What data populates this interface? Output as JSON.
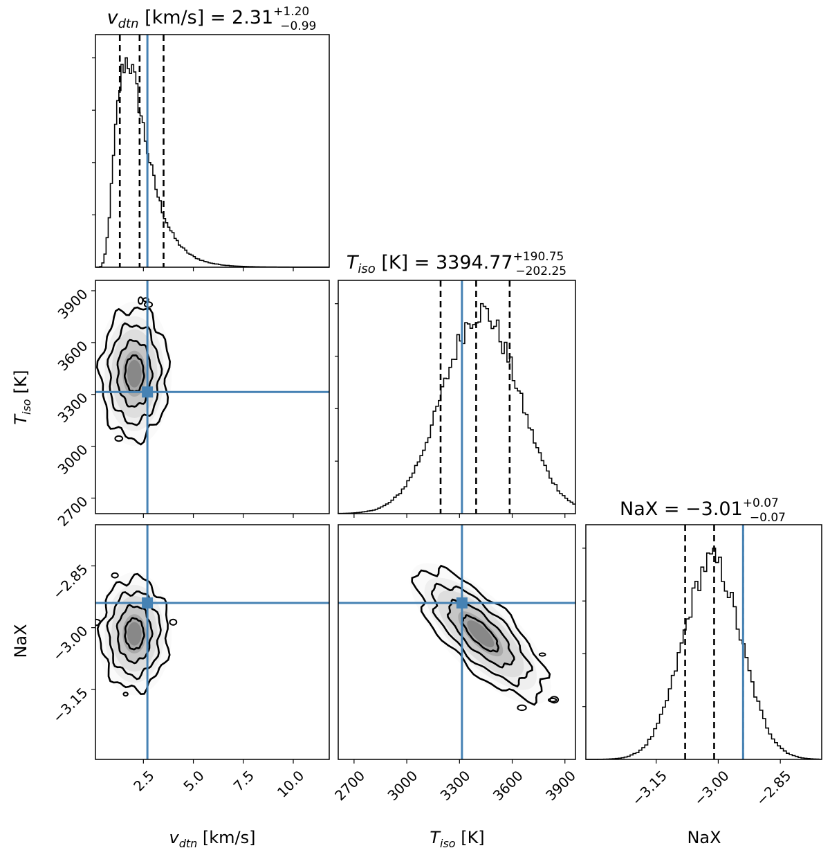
{
  "chart_data": {
    "type": "corner",
    "truth_color": "#4682b4",
    "parameters": [
      {
        "key": "vdtn",
        "label": "v_dtn [km/s]",
        "label_main": "v",
        "label_sub": "dtn",
        "label_unit": " [km/s]",
        "median": 2.31,
        "err_plus": 1.2,
        "err_minus": 0.99,
        "title_eq": " [km/s] = 2.31",
        "title_plus": "+1.20",
        "title_minus": "−0.99",
        "truth": 2.7,
        "quantiles": [
          1.32,
          2.31,
          3.51
        ],
        "range": [
          0.1,
          11.8
        ],
        "ticks": [
          2.5,
          5.0,
          7.5,
          10.0
        ],
        "tick_labels": [
          "2.5",
          "5.0",
          "7.5",
          "10.0"
        ]
      },
      {
        "key": "tiso",
        "label": "T_iso [K]",
        "label_main": "T",
        "label_sub": "iso",
        "label_unit": " [K]",
        "median": 3394.77,
        "err_plus": 190.75,
        "err_minus": 202.25,
        "title_eq": " [K] = 3394.77",
        "title_plus": "+190.75",
        "title_minus": "−202.25",
        "truth": 3314,
        "quantiles": [
          3192.52,
          3394.77,
          3585.52
        ],
        "range": [
          2610,
          3960
        ],
        "ticks": [
          2700,
          3000,
          3300,
          3600,
          3900
        ],
        "tick_labels": [
          "2700",
          "3000",
          "3300",
          "3600",
          "3900"
        ]
      },
      {
        "key": "nax",
        "label": "NaX",
        "label_main": "NaX",
        "label_sub": "",
        "label_unit": "",
        "median": -3.01,
        "err_plus": 0.07,
        "err_minus": 0.07,
        "title_eq": " = −3.01",
        "title_plus": "+0.07",
        "title_minus": "−0.07",
        "truth": -2.94,
        "quantiles": [
          -3.08,
          -3.01,
          -2.94
        ],
        "range": [
          -3.32,
          -2.75
        ],
        "ticks": [
          -3.15,
          -3.0,
          -2.85
        ],
        "tick_labels": [
          "−3.15",
          "−3.00",
          "−2.85"
        ]
      }
    ],
    "pairs": [
      {
        "x": "vdtn",
        "y": "tiso",
        "center": [
          2.05,
          3420
        ],
        "sigma": [
          0.85,
          190
        ],
        "rho": 0.0,
        "level_scale": [
          0.55,
          1.0,
          1.5,
          2.0
        ]
      },
      {
        "x": "vdtn",
        "y": "nax",
        "center": [
          2.05,
          -3.015
        ],
        "sigma": [
          0.85,
          0.068
        ],
        "rho": 0.0,
        "level_scale": [
          0.55,
          1.0,
          1.5,
          2.0
        ]
      },
      {
        "x": "tiso",
        "y": "nax",
        "center": [
          3420,
          -3.015
        ],
        "sigma": [
          190,
          0.068
        ],
        "rho": -0.75,
        "level_scale": [
          0.55,
          1.0,
          1.5,
          2.0
        ]
      }
    ]
  }
}
